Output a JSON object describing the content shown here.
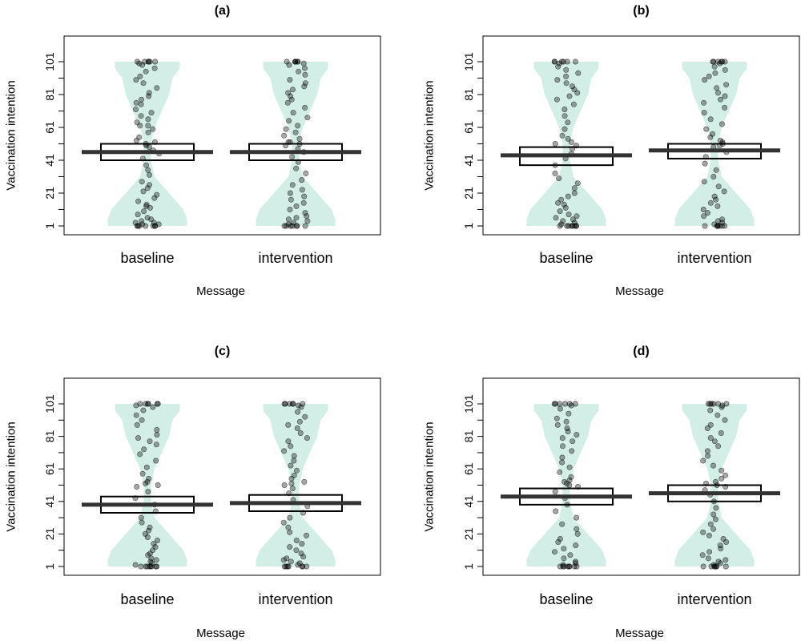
{
  "colors": {
    "violin": "#d3eee6",
    "points": "#000000",
    "box": "#000000",
    "mean_line": "#333333",
    "frame": "#000000"
  },
  "chart_data": [
    {
      "type": "violin",
      "title": "(a)",
      "xlabel": "Message",
      "ylabel": "Vaccination intention",
      "categories": [
        "baseline",
        "intervention"
      ],
      "ylim": [
        1,
        101
      ],
      "yticks": [
        1,
        11,
        21,
        31,
        41,
        51,
        61,
        71,
        81,
        91,
        101
      ],
      "ytick_labels": [
        "1",
        "",
        "21",
        "",
        "41",
        "",
        "61",
        "",
        "81",
        "",
        "101"
      ],
      "series": [
        {
          "category": "baseline",
          "mean": 46,
          "ci_lower": 41,
          "ci_upper": 51,
          "density": [
            [
              1,
              0.55
            ],
            [
              5,
              0.55
            ],
            [
              11,
              0.5
            ],
            [
              21,
              0.3
            ],
            [
              31,
              0.1
            ],
            [
              41,
              0.05
            ],
            [
              51,
              0.05
            ],
            [
              61,
              0.1
            ],
            [
              71,
              0.2
            ],
            [
              81,
              0.3
            ],
            [
              91,
              0.35
            ],
            [
              97,
              0.45
            ],
            [
              101,
              0.45
            ]
          ],
          "points": [
            1,
            1,
            1,
            1,
            1,
            1,
            1,
            2,
            2,
            3,
            3,
            4,
            5,
            6,
            8,
            10,
            12,
            13,
            14,
            16,
            18,
            20,
            22,
            24,
            26,
            28,
            32,
            35,
            38,
            42,
            45,
            47,
            49,
            50,
            51,
            52,
            53,
            55,
            58,
            60,
            62,
            62,
            64,
            66,
            68,
            70,
            72,
            75,
            76,
            78,
            80,
            82,
            85,
            88,
            90,
            92,
            95,
            97,
            99,
            100,
            101,
            101,
            101,
            101,
            101,
            101
          ]
        },
        {
          "category": "intervention",
          "mean": 46,
          "ci_lower": 41,
          "ci_upper": 51,
          "density": [
            [
              1,
              0.55
            ],
            [
              5,
              0.55
            ],
            [
              11,
              0.5
            ],
            [
              21,
              0.3
            ],
            [
              31,
              0.1
            ],
            [
              41,
              0.05
            ],
            [
              51,
              0.05
            ],
            [
              61,
              0.1
            ],
            [
              71,
              0.2
            ],
            [
              81,
              0.3
            ],
            [
              91,
              0.35
            ],
            [
              97,
              0.45
            ],
            [
              101,
              0.45
            ]
          ],
          "points": [
            1,
            1,
            1,
            1,
            1,
            1,
            1,
            2,
            3,
            4,
            5,
            6,
            7,
            9,
            11,
            13,
            15,
            17,
            19,
            21,
            23,
            26,
            29,
            33,
            36,
            40,
            43,
            46,
            48,
            50,
            51,
            52,
            52,
            54,
            56,
            58,
            60,
            62,
            65,
            67,
            70,
            73,
            76,
            78,
            80,
            82,
            84,
            86,
            88,
            90,
            93,
            95,
            97,
            99,
            100,
            101,
            101,
            101,
            101,
            101,
            101
          ]
        }
      ]
    },
    {
      "type": "violin",
      "title": "(b)",
      "xlabel": "Message",
      "ylabel": "Vaccination intention",
      "categories": [
        "baseline",
        "intervention"
      ],
      "ylim": [
        1,
        101
      ],
      "yticks": [
        1,
        11,
        21,
        31,
        41,
        51,
        61,
        71,
        81,
        91,
        101
      ],
      "ytick_labels": [
        "1",
        "",
        "21",
        "",
        "41",
        "",
        "61",
        "",
        "81",
        "",
        "101"
      ],
      "series": [
        {
          "category": "baseline",
          "mean": 44,
          "ci_lower": 38,
          "ci_upper": 49,
          "density": [
            [
              1,
              0.55
            ],
            [
              5,
              0.55
            ],
            [
              11,
              0.5
            ],
            [
              21,
              0.3
            ],
            [
              31,
              0.1
            ],
            [
              41,
              0.05
            ],
            [
              51,
              0.05
            ],
            [
              61,
              0.1
            ],
            [
              71,
              0.2
            ],
            [
              81,
              0.3
            ],
            [
              91,
              0.35
            ],
            [
              97,
              0.45
            ],
            [
              101,
              0.45
            ]
          ],
          "points": [
            1,
            1,
            1,
            1,
            1,
            1,
            1,
            1,
            2,
            3,
            4,
            5,
            6,
            7,
            8,
            10,
            12,
            14,
            15,
            17,
            19,
            21,
            24,
            27,
            30,
            33,
            38,
            42,
            45,
            48,
            50,
            51,
            52,
            54,
            56,
            60,
            64,
            68,
            72,
            75,
            78,
            80,
            82,
            84,
            86,
            88,
            90,
            92,
            94,
            96,
            98,
            100,
            101,
            101,
            101,
            101,
            101,
            101
          ]
        },
        {
          "category": "intervention",
          "mean": 47,
          "ci_lower": 42,
          "ci_upper": 51,
          "density": [
            [
              1,
              0.55
            ],
            [
              5,
              0.55
            ],
            [
              11,
              0.5
            ],
            [
              21,
              0.3
            ],
            [
              31,
              0.1
            ],
            [
              41,
              0.05
            ],
            [
              51,
              0.05
            ],
            [
              61,
              0.1
            ],
            [
              71,
              0.2
            ],
            [
              81,
              0.3
            ],
            [
              91,
              0.35
            ],
            [
              97,
              0.45
            ],
            [
              101,
              0.45
            ]
          ],
          "points": [
            1,
            1,
            1,
            1,
            1,
            1,
            1,
            2,
            3,
            4,
            5,
            7,
            9,
            11,
            13,
            15,
            17,
            19,
            22,
            25,
            28,
            31,
            35,
            39,
            43,
            46,
            49,
            50,
            51,
            52,
            53,
            55,
            57,
            60,
            63,
            66,
            70,
            73,
            76,
            78,
            80,
            82,
            85,
            87,
            90,
            92,
            94,
            96,
            98,
            100,
            101,
            101,
            101,
            101,
            101,
            101
          ]
        }
      ]
    },
    {
      "type": "violin",
      "title": "(c)",
      "xlabel": "Message",
      "ylabel": "Vaccination intention",
      "categories": [
        "baseline",
        "intervention"
      ],
      "ylim": [
        1,
        101
      ],
      "yticks": [
        1,
        11,
        21,
        31,
        41,
        51,
        61,
        71,
        81,
        91,
        101
      ],
      "ytick_labels": [
        "1",
        "",
        "21",
        "",
        "41",
        "",
        "61",
        "",
        "81",
        "",
        "101"
      ],
      "series": [
        {
          "category": "baseline",
          "mean": 39,
          "ci_lower": 34,
          "ci_upper": 44,
          "density": [
            [
              1,
              0.55
            ],
            [
              5,
              0.55
            ],
            [
              11,
              0.5
            ],
            [
              21,
              0.3
            ],
            [
              31,
              0.1
            ],
            [
              41,
              0.05
            ],
            [
              51,
              0.05
            ],
            [
              61,
              0.1
            ],
            [
              71,
              0.2
            ],
            [
              81,
              0.3
            ],
            [
              91,
              0.35
            ],
            [
              97,
              0.45
            ],
            [
              101,
              0.45
            ]
          ],
          "points": [
            1,
            1,
            1,
            1,
            1,
            1,
            1,
            1,
            2,
            3,
            4,
            5,
            6,
            8,
            9,
            11,
            13,
            15,
            17,
            19,
            21,
            23,
            25,
            28,
            31,
            35,
            39,
            43,
            47,
            50,
            51,
            52,
            53,
            55,
            58,
            62,
            66,
            70,
            73,
            76,
            78,
            80,
            82,
            85,
            88,
            91,
            94,
            97,
            99,
            100,
            101,
            101,
            101,
            101,
            101,
            101
          ]
        },
        {
          "category": "intervention",
          "mean": 40,
          "ci_lower": 35,
          "ci_upper": 45,
          "density": [
            [
              1,
              0.55
            ],
            [
              5,
              0.55
            ],
            [
              11,
              0.5
            ],
            [
              21,
              0.3
            ],
            [
              31,
              0.1
            ],
            [
              41,
              0.05
            ],
            [
              51,
              0.05
            ],
            [
              61,
              0.1
            ],
            [
              71,
              0.2
            ],
            [
              81,
              0.3
            ],
            [
              91,
              0.35
            ],
            [
              97,
              0.45
            ],
            [
              101,
              0.45
            ]
          ],
          "points": [
            1,
            1,
            1,
            1,
            1,
            1,
            1,
            2,
            3,
            4,
            5,
            6,
            7,
            9,
            11,
            13,
            15,
            17,
            20,
            22,
            25,
            28,
            31,
            34,
            38,
            42,
            46,
            49,
            51,
            52,
            53,
            55,
            57,
            60,
            63,
            66,
            69,
            72,
            75,
            78,
            80,
            83,
            86,
            88,
            90,
            93,
            96,
            99,
            100,
            101,
            101,
            101,
            101,
            101,
            101
          ]
        }
      ]
    },
    {
      "type": "violin",
      "title": "(d)",
      "xlabel": "Message",
      "ylabel": "Vaccination intention",
      "categories": [
        "baseline",
        "intervention"
      ],
      "ylim": [
        1,
        101
      ],
      "yticks": [
        1,
        11,
        21,
        31,
        41,
        51,
        61,
        71,
        81,
        91,
        101
      ],
      "ytick_labels": [
        "1",
        "",
        "21",
        "",
        "41",
        "",
        "61",
        "",
        "81",
        "",
        "101"
      ],
      "series": [
        {
          "category": "baseline",
          "mean": 44,
          "ci_lower": 39,
          "ci_upper": 49,
          "density": [
            [
              1,
              0.55
            ],
            [
              5,
              0.55
            ],
            [
              11,
              0.5
            ],
            [
              21,
              0.3
            ],
            [
              31,
              0.1
            ],
            [
              41,
              0.05
            ],
            [
              51,
              0.05
            ],
            [
              61,
              0.1
            ],
            [
              71,
              0.2
            ],
            [
              81,
              0.3
            ],
            [
              91,
              0.35
            ],
            [
              97,
              0.45
            ],
            [
              101,
              0.45
            ]
          ],
          "points": [
            1,
            1,
            1,
            1,
            1,
            1,
            1,
            1,
            2,
            3,
            4,
            6,
            8,
            10,
            12,
            14,
            16,
            18,
            21,
            24,
            27,
            31,
            35,
            39,
            43,
            47,
            50,
            51,
            52,
            53,
            54,
            56,
            59,
            62,
            65,
            68,
            72,
            75,
            78,
            80,
            82,
            84,
            86,
            88,
            90,
            92,
            95,
            98,
            100,
            101,
            101,
            101,
            101,
            101,
            101
          ]
        },
        {
          "category": "intervention",
          "mean": 46,
          "ci_lower": 41,
          "ci_upper": 51,
          "density": [
            [
              1,
              0.55
            ],
            [
              5,
              0.55
            ],
            [
              11,
              0.5
            ],
            [
              21,
              0.3
            ],
            [
              31,
              0.1
            ],
            [
              41,
              0.05
            ],
            [
              51,
              0.05
            ],
            [
              61,
              0.1
            ],
            [
              71,
              0.2
            ],
            [
              81,
              0.3
            ],
            [
              91,
              0.35
            ],
            [
              97,
              0.45
            ],
            [
              101,
              0.45
            ]
          ],
          "points": [
            1,
            1,
            1,
            1,
            1,
            1,
            1,
            2,
            3,
            4,
            5,
            6,
            8,
            10,
            12,
            14,
            16,
            18,
            20,
            22,
            24,
            27,
            30,
            33,
            37,
            41,
            45,
            48,
            50,
            51,
            52,
            53,
            55,
            57,
            60,
            63,
            66,
            69,
            72,
            75,
            78,
            80,
            83,
            86,
            88,
            91,
            94,
            97,
            99,
            100,
            101,
            101,
            101,
            101,
            101,
            101
          ]
        }
      ]
    }
  ]
}
